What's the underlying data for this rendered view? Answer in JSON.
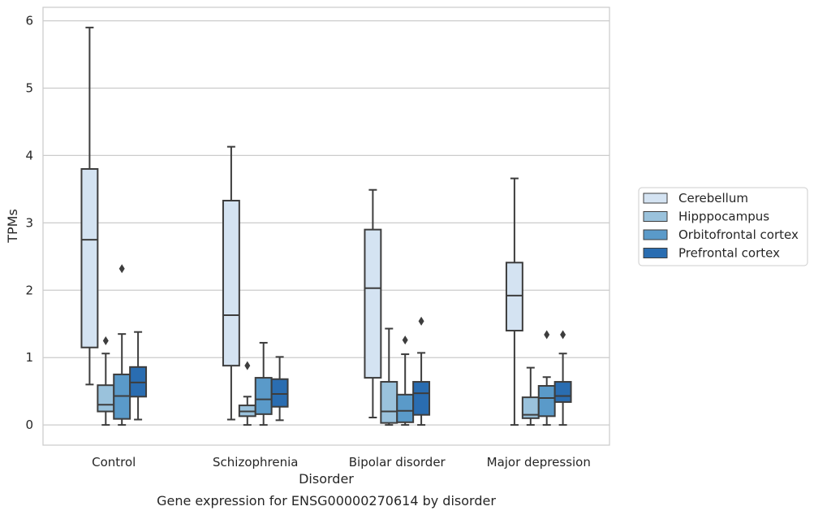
{
  "chart_data": {
    "type": "box",
    "caption": "Gene expression for ENSG00000270614 by disorder",
    "xlabel": "Disorder",
    "ylabel": "TPMs",
    "ylim": [
      -0.3,
      6.2
    ],
    "yticks": [
      0,
      1,
      2,
      3,
      4,
      5,
      6
    ],
    "grid": "horizontal",
    "legend_position": "right",
    "categories": [
      "Control",
      "Schizophrenia",
      "Bipolar disorder",
      "Major depression"
    ],
    "series": [
      {
        "name": "Cerebellum",
        "color": "#d4e3f2",
        "boxes": [
          {
            "whisker_low": 0.6,
            "q1": 1.15,
            "median": 2.75,
            "q3": 3.8,
            "whisker_high": 5.9,
            "outliers": []
          },
          {
            "whisker_low": 0.08,
            "q1": 0.88,
            "median": 1.63,
            "q3": 3.33,
            "whisker_high": 4.13,
            "outliers": []
          },
          {
            "whisker_low": 0.11,
            "q1": 0.7,
            "median": 2.03,
            "q3": 2.9,
            "whisker_high": 3.49,
            "outliers": []
          },
          {
            "whisker_low": 0.0,
            "q1": 1.4,
            "median": 1.92,
            "q3": 2.41,
            "whisker_high": 3.66,
            "outliers": []
          }
        ]
      },
      {
        "name": "Hipppocampus",
        "color": "#9ac2dc",
        "boxes": [
          {
            "whisker_low": 0.0,
            "q1": 0.2,
            "median": 0.3,
            "q3": 0.59,
            "whisker_high": 1.06,
            "outliers": [
              1.25
            ]
          },
          {
            "whisker_low": 0.0,
            "q1": 0.13,
            "median": 0.2,
            "q3": 0.29,
            "whisker_high": 0.42,
            "outliers": [
              0.88
            ]
          },
          {
            "whisker_low": 0.0,
            "q1": 0.03,
            "median": 0.2,
            "q3": 0.64,
            "whisker_high": 1.43,
            "outliers": []
          },
          {
            "whisker_low": 0.0,
            "q1": 0.1,
            "median": 0.15,
            "q3": 0.41,
            "whisker_high": 0.85,
            "outliers": []
          }
        ]
      },
      {
        "name": "Orbitofrontal cortex",
        "color": "#5a9ac9",
        "boxes": [
          {
            "whisker_low": 0.0,
            "q1": 0.09,
            "median": 0.43,
            "q3": 0.75,
            "whisker_high": 1.35,
            "outliers": [
              2.32
            ]
          },
          {
            "whisker_low": 0.0,
            "q1": 0.16,
            "median": 0.38,
            "q3": 0.7,
            "whisker_high": 1.22,
            "outliers": []
          },
          {
            "whisker_low": 0.0,
            "q1": 0.04,
            "median": 0.21,
            "q3": 0.45,
            "whisker_high": 1.05,
            "outliers": [
              1.26
            ]
          },
          {
            "whisker_low": 0.0,
            "q1": 0.13,
            "median": 0.4,
            "q3": 0.58,
            "whisker_high": 0.71,
            "outliers": [
              1.34
            ]
          }
        ]
      },
      {
        "name": "Prefrontal cortex",
        "color": "#2a6db1",
        "boxes": [
          {
            "whisker_low": 0.08,
            "q1": 0.42,
            "median": 0.63,
            "q3": 0.86,
            "whisker_high": 1.38,
            "outliers": []
          },
          {
            "whisker_low": 0.07,
            "q1": 0.27,
            "median": 0.46,
            "q3": 0.68,
            "whisker_high": 1.01,
            "outliers": []
          },
          {
            "whisker_low": 0.0,
            "q1": 0.15,
            "median": 0.47,
            "q3": 0.64,
            "whisker_high": 1.07,
            "outliers": [
              1.54
            ]
          },
          {
            "whisker_low": 0.0,
            "q1": 0.34,
            "median": 0.43,
            "q3": 0.64,
            "whisker_high": 1.06,
            "outliers": [
              1.34
            ]
          }
        ]
      }
    ]
  }
}
